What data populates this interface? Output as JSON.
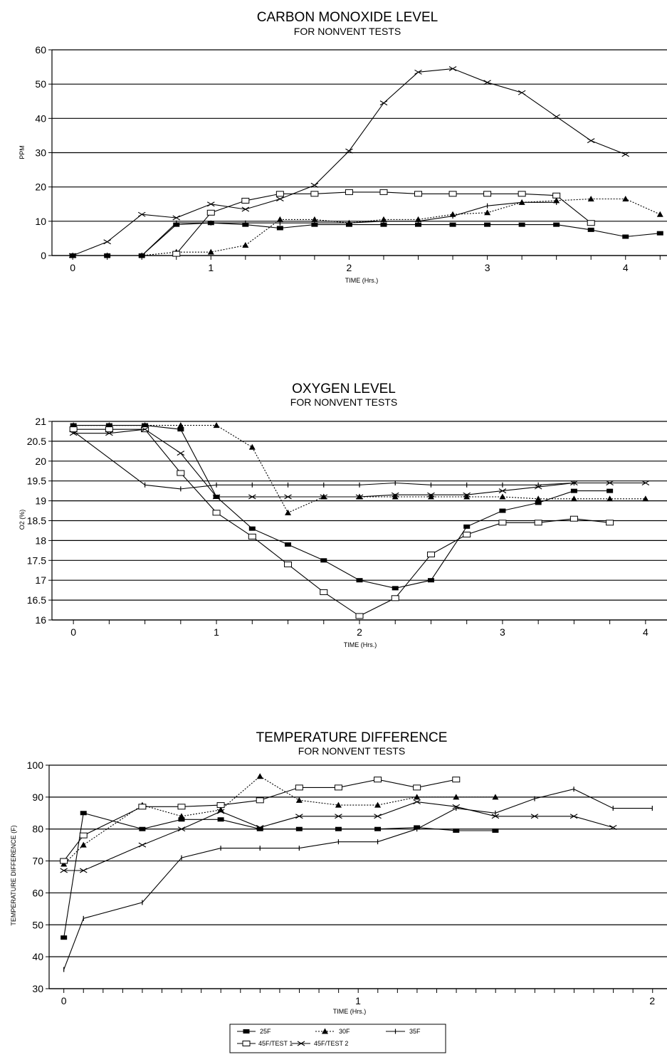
{
  "legend": [
    {
      "name": "25F",
      "marker": "filled-square",
      "dash": "solid"
    },
    {
      "name": "30F",
      "marker": "filled-triangle",
      "dash": "dotted"
    },
    {
      "name": "35F",
      "marker": "plus",
      "dash": "solid"
    },
    {
      "name": "45F/TEST 1",
      "marker": "open-square",
      "dash": "solid"
    },
    {
      "name": "45F/TEST 2",
      "marker": "x",
      "dash": "solid"
    }
  ],
  "chart_data": [
    {
      "type": "line",
      "title": "CARBON MONOXIDE LEVEL",
      "subtitle": "FOR NONVENT TESTS",
      "xlabel": "TIME (Hrs.)",
      "ylabel": "PPM",
      "xlim": [
        -0.15,
        4.3
      ],
      "ylim": [
        0,
        60
      ],
      "xticks": [
        "0",
        "1",
        "2",
        "3",
        "4"
      ],
      "xtick_values": [
        0,
        1,
        2,
        3,
        4
      ],
      "yticks": [
        "0",
        "10",
        "20",
        "30",
        "40",
        "50",
        "60"
      ],
      "ytick_values": [
        0,
        10,
        20,
        30,
        40,
        50,
        60
      ],
      "grid": "horizontal",
      "series": [
        {
          "name": "25F",
          "x": [
            0,
            0.25,
            0.5,
            0.75,
            1,
            1.25,
            1.5,
            1.75,
            2,
            2.25,
            2.5,
            2.75,
            3,
            3.25,
            3.5,
            3.75,
            4,
            4.25
          ],
          "y": [
            0,
            0,
            0,
            9,
            9.5,
            9,
            8,
            9,
            9,
            9,
            9,
            9,
            9,
            9,
            9,
            7.5,
            5.5,
            6.5
          ]
        },
        {
          "name": "30F",
          "x": [
            0,
            0.25,
            0.5,
            0.75,
            1,
            1.25,
            1.5,
            1.75,
            2,
            2.25,
            2.5,
            2.75,
            3,
            3.25,
            3.5,
            3.75,
            4,
            4.25
          ],
          "y": [
            0,
            0,
            0,
            1,
            1,
            3,
            10.5,
            10.5,
            9.5,
            10.5,
            10.5,
            12,
            12.5,
            15.5,
            16,
            16.5,
            16.5,
            12
          ]
        },
        {
          "name": "35F",
          "x": [
            0.5,
            0.75,
            1,
            1.25,
            1.5,
            1.75,
            2,
            2.25,
            2.5,
            2.75,
            3,
            3.25,
            3.5
          ],
          "y": [
            0,
            9.5,
            9.5,
            9.5,
            9.5,
            9.5,
            9.5,
            10,
            10,
            11.5,
            14.5,
            15.5,
            15.5
          ]
        },
        {
          "name": "45F/TEST 1",
          "x": [
            0.75,
            1,
            1.25,
            1.5,
            1.75,
            2,
            2.25,
            2.5,
            2.75,
            3,
            3.25,
            3.5,
            3.75
          ],
          "y": [
            0.5,
            12.5,
            16,
            18,
            18,
            18.5,
            18.5,
            18,
            18,
            18,
            18,
            17.5,
            9.5
          ]
        },
        {
          "name": "45F/TEST 2",
          "x": [
            0,
            0.25,
            0.5,
            0.75,
            1,
            1.25,
            1.5,
            1.75,
            2,
            2.25,
            2.5,
            2.75,
            3,
            3.25,
            3.5,
            3.75,
            4
          ],
          "y": [
            0,
            4,
            12,
            11,
            15,
            13.5,
            16.5,
            20.5,
            30.5,
            44.5,
            53.5,
            54.5,
            50.5,
            47.5,
            40.5,
            33.5,
            29.5
          ]
        }
      ]
    },
    {
      "type": "line",
      "title": "OXYGEN LEVEL",
      "subtitle": "FOR NONVENT TESTS",
      "xlabel": "TIME (Hrs.)",
      "ylabel": "O2 (%)",
      "xlim": [
        -0.15,
        4.15
      ],
      "ylim": [
        16,
        21
      ],
      "xticks": [
        "0",
        "1",
        "2",
        "3",
        "4"
      ],
      "xtick_values": [
        0,
        1,
        2,
        3,
        4
      ],
      "yticks": [
        "16",
        "16.5",
        "17",
        "17.5",
        "18",
        "18.5",
        "19",
        "19.5",
        "20",
        "20.5",
        "21"
      ],
      "ytick_values": [
        16,
        16.5,
        17,
        17.5,
        18,
        18.5,
        19,
        19.5,
        20,
        20.5,
        21
      ],
      "grid": "horizontal",
      "series": [
        {
          "name": "25F",
          "x": [
            0,
            0.25,
            0.5,
            0.75,
            1,
            1.25,
            1.5,
            1.75,
            2,
            2.25,
            2.5,
            2.75,
            3,
            3.25,
            3.5,
            3.75
          ],
          "y": [
            20.9,
            20.9,
            20.9,
            20.8,
            19.1,
            18.3,
            17.9,
            17.5,
            17.0,
            16.8,
            17.0,
            18.35,
            18.75,
            18.95,
            19.25,
            19.25
          ]
        },
        {
          "name": "30F",
          "x": [
            0,
            0.25,
            0.5,
            0.75,
            1,
            1.25,
            1.5,
            1.75,
            2,
            2.25,
            2.5,
            2.75,
            3,
            3.25,
            3.5,
            3.75,
            4
          ],
          "y": [
            20.9,
            20.9,
            20.9,
            20.9,
            20.9,
            20.35,
            18.7,
            19.1,
            19.1,
            19.1,
            19.1,
            19.1,
            19.1,
            19.05,
            19.05,
            19.05,
            19.05
          ]
        },
        {
          "name": "35F",
          "x": [
            0,
            0.5,
            0.75,
            1,
            1.25,
            1.5,
            1.75,
            2,
            2.25,
            2.5,
            2.75,
            3,
            3.25,
            3.5
          ],
          "y": [
            20.75,
            19.4,
            19.3,
            19.4,
            19.4,
            19.4,
            19.4,
            19.4,
            19.45,
            19.4,
            19.4,
            19.4,
            19.4,
            19.45
          ]
        },
        {
          "name": "45F/TEST 1",
          "x": [
            0,
            0.25,
            0.5,
            0.75,
            1,
            1.25,
            1.5,
            1.75,
            2,
            2.25,
            2.5,
            2.75,
            3,
            3.25,
            3.5,
            3.75
          ],
          "y": [
            20.8,
            20.8,
            20.8,
            19.7,
            18.7,
            18.1,
            17.4,
            16.7,
            16.1,
            16.55,
            17.65,
            18.15,
            18.45,
            18.45,
            18.55,
            18.45
          ]
        },
        {
          "name": "45F/TEST 2",
          "x": [
            0,
            0.25,
            0.5,
            0.75,
            1,
            1.25,
            1.5,
            1.75,
            2,
            2.25,
            2.5,
            2.75,
            3,
            3.25,
            3.5,
            3.75,
            4
          ],
          "y": [
            20.7,
            20.7,
            20.8,
            20.2,
            19.1,
            19.1,
            19.1,
            19.1,
            19.1,
            19.15,
            19.15,
            19.15,
            19.25,
            19.35,
            19.45,
            19.45,
            19.45
          ]
        }
      ]
    },
    {
      "type": "line",
      "title": "TEMPERATURE DIFFERENCE",
      "subtitle": "FOR NONVENT TESTS",
      "xlabel": "TIME (Hrs.)",
      "ylabel": "TEMPERATURE DIFFERENCE (F)",
      "xlim": [
        -0.05,
        2.05
      ],
      "ylim": [
        30,
        100
      ],
      "xticks": [
        "0",
        "1",
        "2"
      ],
      "xtick_values": [
        0,
        1,
        2
      ],
      "yticks": [
        "30",
        "40",
        "50",
        "60",
        "70",
        "80",
        "90",
        "100"
      ],
      "ytick_values": [
        30,
        40,
        50,
        60,
        70,
        80,
        90,
        100
      ],
      "grid": "horizontal",
      "series": [
        {
          "name": "25F",
          "x": [
            0,
            0.0667,
            0.2667,
            0.4,
            0.5333,
            0.6667,
            0.8,
            0.9333,
            1.0667,
            1.2,
            1.3333,
            1.4667
          ],
          "y": [
            46,
            85,
            80,
            83,
            83,
            80,
            80,
            80,
            80,
            80.5,
            79.5,
            79.5
          ]
        },
        {
          "name": "30F",
          "x": [
            0,
            0.0667,
            0.2667,
            0.4,
            0.5333,
            0.6667,
            0.8,
            0.9333,
            1.0667,
            1.2,
            1.3333,
            1.4667
          ],
          "y": [
            69,
            75,
            87.5,
            84,
            86,
            96.5,
            89,
            87.5,
            87.5,
            90,
            90,
            90
          ]
        },
        {
          "name": "35F",
          "x": [
            0,
            0.0667,
            0.2667,
            0.4,
            0.5333,
            0.6667,
            0.8,
            0.9333,
            1.0667,
            1.2,
            1.3333,
            1.4667,
            1.6,
            1.7333,
            1.8667,
            2.0
          ],
          "y": [
            36,
            52,
            57,
            71,
            74,
            74,
            74,
            76,
            76,
            80,
            86.5,
            85,
            89.5,
            92.5,
            86.5,
            86.5
          ]
        },
        {
          "name": "45F/TEST 1",
          "x": [
            0,
            0.0667,
            0.2667,
            0.4,
            0.5333,
            0.6667,
            0.8,
            0.9333,
            1.0667,
            1.2,
            1.3333
          ],
          "y": [
            70,
            78,
            87,
            87,
            87.5,
            89,
            93,
            93,
            95.5,
            93,
            95.5
          ]
        },
        {
          "name": "45F/TEST 2",
          "x": [
            0,
            0.0667,
            0.2667,
            0.4,
            0.5333,
            0.6667,
            0.8,
            0.9333,
            1.0667,
            1.2,
            1.3333,
            1.4667,
            1.6,
            1.7333,
            1.8667
          ],
          "y": [
            67,
            67,
            75,
            80,
            85.5,
            80.5,
            84,
            84,
            84,
            88.5,
            87,
            84,
            84,
            84,
            80.5
          ]
        }
      ]
    }
  ]
}
